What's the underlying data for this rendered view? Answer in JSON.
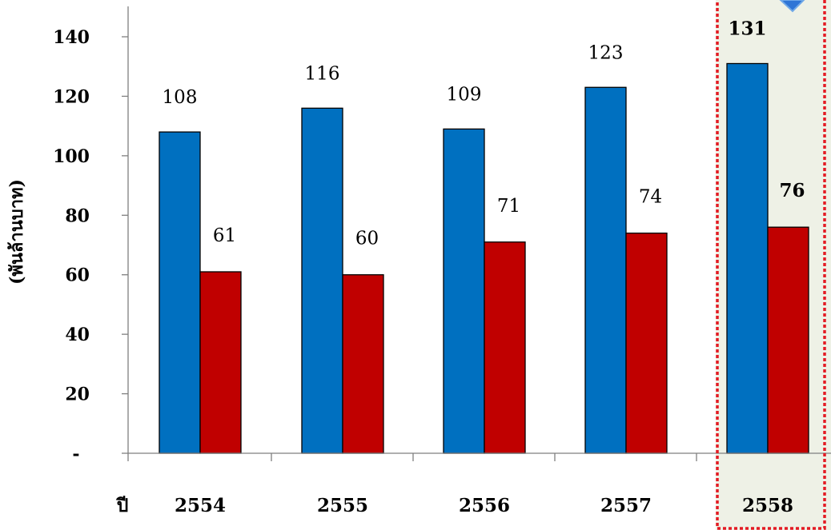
{
  "chart_data": {
    "type": "bar",
    "xlabel": "ปี",
    "ylabel": "(พันล้านบาท)",
    "categories": [
      "2554",
      "2555",
      "2556",
      "2557",
      "2558"
    ],
    "series": [
      {
        "color": "#0070C0",
        "values": [
          108,
          116,
          109,
          123,
          131
        ],
        "labels": [
          "108",
          "116",
          "109",
          "123",
          "131"
        ]
      },
      {
        "color": "#C00000",
        "values": [
          61,
          60,
          71,
          74,
          76
        ],
        "labels": [
          "61",
          "60",
          "71",
          "74",
          "76"
        ]
      }
    ],
    "yticks": [
      {
        "value": 0,
        "label": "-"
      },
      {
        "value": 20,
        "label": "20"
      },
      {
        "value": 40,
        "label": "40"
      },
      {
        "value": 60,
        "label": "60"
      },
      {
        "value": 80,
        "label": "80"
      },
      {
        "value": 100,
        "label": "100"
      },
      {
        "value": 120,
        "label": "120"
      },
      {
        "value": 140,
        "label": "140"
      }
    ],
    "ylim": [
      0,
      150
    ],
    "grid": false,
    "legend": "none",
    "highlight_category": "2558",
    "highlight_fill": "#EEF1E6",
    "highlight_border_color": "#E31B23"
  }
}
